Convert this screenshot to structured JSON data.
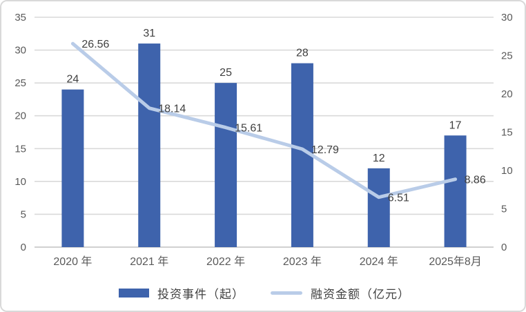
{
  "chart_data": {
    "type": "combo",
    "categories": [
      "2020 年",
      "2021 年",
      "2022 年",
      "2023 年",
      "2024 年",
      "2025年8月"
    ],
    "series": [
      {
        "name": "投资事件（起）",
        "type": "bar",
        "axis": "left",
        "values": [
          24,
          31,
          25,
          28,
          12,
          17
        ],
        "labels": [
          "24",
          "31",
          "25",
          "28",
          "12",
          "17"
        ],
        "color": "#3e63ac"
      },
      {
        "name": "融资金额（亿元）",
        "type": "line",
        "axis": "right",
        "values": [
          26.56,
          18.14,
          15.61,
          12.79,
          6.51,
          8.86
        ],
        "labels": [
          "26.56",
          "18.14",
          "15.61",
          "12.79",
          "6.51",
          "8.86"
        ],
        "color": "#b9cce8"
      }
    ],
    "left_axis": {
      "min": 0,
      "max": 35,
      "step": 5,
      "ticks": [
        0,
        5,
        10,
        15,
        20,
        25,
        30,
        35
      ]
    },
    "right_axis": {
      "min": 0,
      "max": 30,
      "step": 5,
      "ticks": [
        0,
        5,
        10,
        15,
        20,
        25,
        30
      ]
    },
    "grid": true,
    "legend_position": "bottom",
    "colors": {
      "gridline": "#d9d9d9",
      "axis_line": "#c0c0c0",
      "tick_text": "#595959",
      "data_label_text": "#404040",
      "bar": "#3e63ac",
      "line": "#b9cce8"
    }
  }
}
